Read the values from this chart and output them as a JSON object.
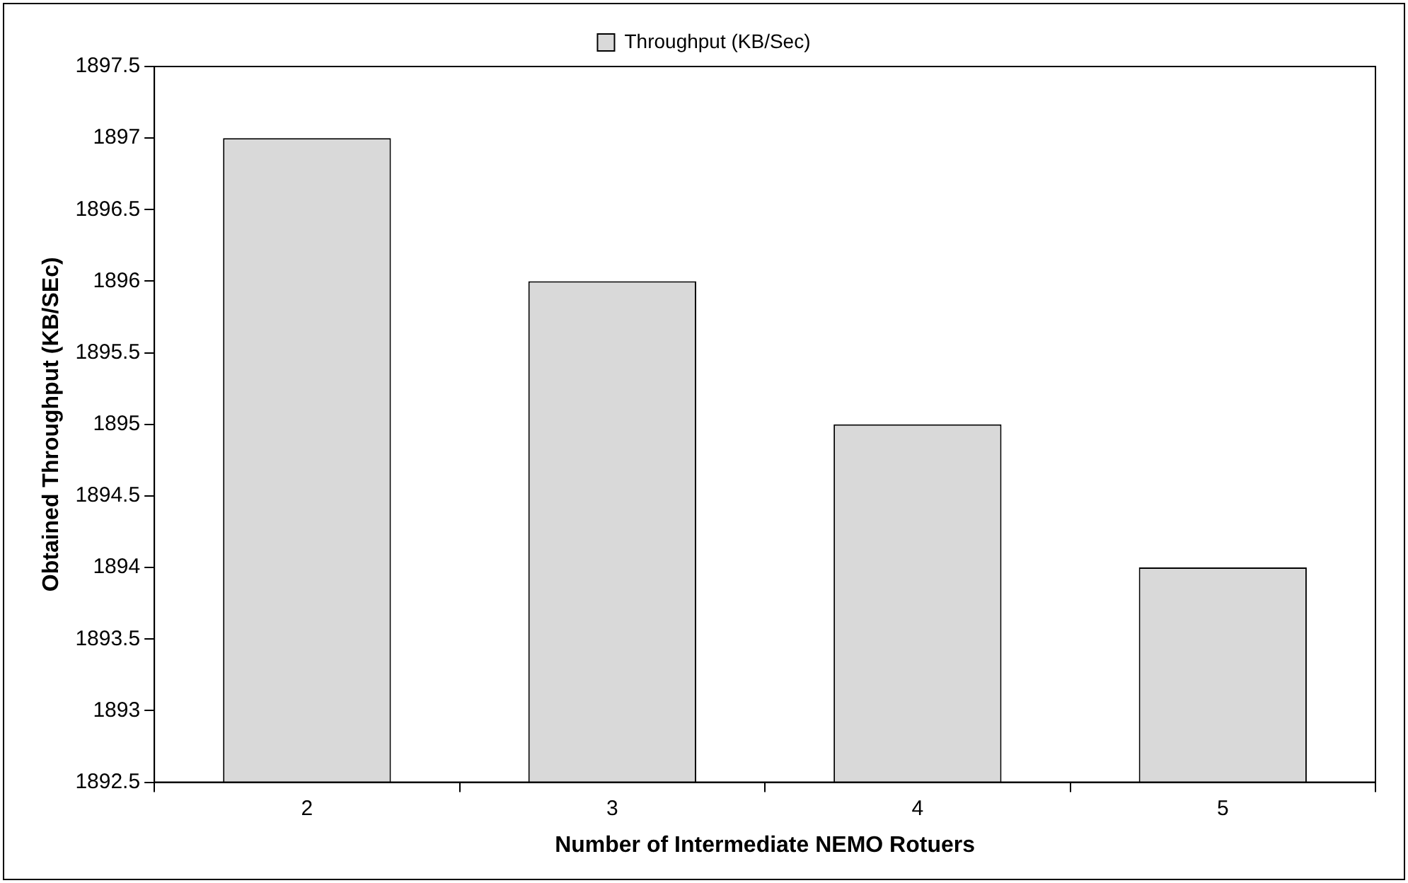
{
  "chart_data": {
    "type": "bar",
    "xlabel": "Number of Intermediate NEMO Rotuers",
    "ylabel": "Obtained Throughput (KB/SEc)",
    "categories": [
      "2",
      "3",
      "4",
      "5"
    ],
    "series": [
      {
        "name": "Throughput (KB/Sec)",
        "color": "#d9d9d9",
        "values": [
          1897,
          1896,
          1895,
          1894
        ]
      }
    ],
    "ylim": [
      1892.5,
      1897.5
    ],
    "yticks": [
      1892.5,
      1893,
      1893.5,
      1894,
      1894.5,
      1895,
      1895.5,
      1896,
      1896.5,
      1897,
      1897.5
    ],
    "grid": false,
    "legend": "top"
  }
}
